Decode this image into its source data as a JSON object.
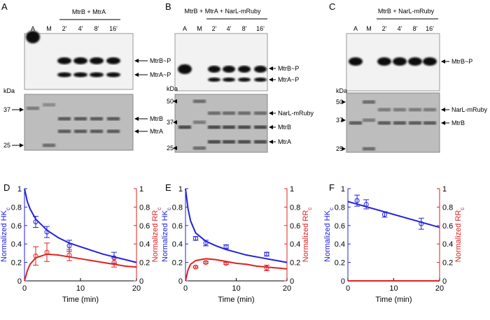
{
  "gels": [
    {
      "letter": "A",
      "condition": "MtrB + MtrA",
      "lanes": [
        "A",
        "M",
        "2'",
        "4'",
        "8'",
        "16'"
      ],
      "top_labels": [
        "MtrB~P",
        "MtrA~P"
      ],
      "bottom_labels": [
        "MtrB",
        "MtrA"
      ],
      "kda": "kDa",
      "markers": [
        "37",
        "25"
      ]
    },
    {
      "letter": "B",
      "condition": "MtrB + MtrA + NarL-mRuby",
      "lanes": [
        "A",
        "M",
        "2'",
        "4'",
        "8'",
        "16'"
      ],
      "top_labels": [
        "MtrB~P",
        "MtrA~P"
      ],
      "bottom_labels": [
        "NarL-mRuby",
        "MtrB",
        "MtrA"
      ],
      "kda": "kDa",
      "markers": [
        "50",
        "37",
        "25"
      ]
    },
    {
      "letter": "C",
      "condition": "MtrB + NarL-mRuby",
      "lanes": [
        "A",
        "M",
        "2'",
        "4'",
        "8'",
        "16'"
      ],
      "top_labels": [
        "MtrB~P"
      ],
      "bottom_labels": [
        "NarL-mRuby",
        "MtrB"
      ],
      "kda": "kDa",
      "markers": [
        "50",
        "37",
        "25"
      ]
    }
  ],
  "chart_data": [
    {
      "panel": "D",
      "type": "line",
      "xlabel": "Time (min)",
      "ylabel": {
        "text": "Normalized HK",
        "sub": "c"
      },
      "y2label": {
        "text": "Normalized RR",
        "sub": "c"
      },
      "xlim": [
        0,
        20
      ],
      "xticks": [
        0,
        10,
        20
      ],
      "ylim": [
        0,
        1
      ],
      "yticks": [
        0,
        0.2,
        0.4,
        0.6,
        0.8,
        1
      ],
      "y2lim": [
        0,
        1
      ],
      "y2ticks": [
        0,
        0.2,
        0.4,
        0.6,
        0.8,
        1
      ],
      "ycolor": "#2222dd",
      "y2color": "#e02020",
      "series": [
        {
          "color": "#2222dd",
          "x": [
            2,
            4,
            8,
            16
          ],
          "values": [
            0.64,
            0.53,
            0.38,
            0.25
          ],
          "errors": [
            0.06,
            0.06,
            0.06,
            0.06
          ]
        },
        {
          "color": "#e02020",
          "axis": "y2",
          "x": [
            2,
            4,
            8,
            16
          ],
          "values": [
            0.27,
            0.31,
            0.28,
            0.2
          ],
          "errors": [
            0.1,
            0.1,
            0.06,
            0.05
          ]
        },
        {
          "color": "#2222dd",
          "x": [
            0,
            0.5,
            1,
            2,
            4,
            6,
            8,
            10,
            12,
            14,
            16,
            18,
            20
          ],
          "values": [
            1.0,
            0.86,
            0.78,
            0.67,
            0.55,
            0.47,
            0.41,
            0.37,
            0.33,
            0.29,
            0.26,
            0.23,
            0.2
          ]
        },
        {
          "color": "#e02020",
          "axis": "y2",
          "x": [
            0,
            0.5,
            1,
            2,
            4,
            6,
            8,
            10,
            12,
            14,
            16,
            18,
            20
          ],
          "values": [
            0,
            0.11,
            0.18,
            0.25,
            0.29,
            0.28,
            0.26,
            0.24,
            0.22,
            0.2,
            0.18,
            0.16,
            0.15
          ]
        }
      ]
    },
    {
      "panel": "E",
      "type": "line",
      "xlabel": "Time (min)",
      "ylabel": {
        "text": "Normalized HK",
        "sub": "c"
      },
      "y2label": {
        "text": "Normalized RR",
        "sub": "c"
      },
      "xlim": [
        0,
        20
      ],
      "xticks": [
        0,
        10,
        20
      ],
      "ylim": [
        0,
        1
      ],
      "yticks": [
        0,
        0.2,
        0.4,
        0.6,
        0.8,
        1
      ],
      "y2lim": [
        0,
        1
      ],
      "y2ticks": [
        0,
        0.2,
        0.4,
        0.6,
        0.8,
        1
      ],
      "ycolor": "#2222dd",
      "y2color": "#e02020",
      "series": [
        {
          "color": "#2222dd",
          "x": [
            2,
            4,
            8,
            16
          ],
          "values": [
            0.46,
            0.41,
            0.37,
            0.29
          ],
          "errors": [
            0.02,
            0.03,
            0.02,
            0.02
          ]
        },
        {
          "color": "#e02020",
          "axis": "y2",
          "x": [
            2,
            4,
            8,
            16
          ],
          "values": [
            0.15,
            0.2,
            0.19,
            0.14
          ],
          "errors": [
            0.01,
            0.01,
            0.01,
            0.03
          ]
        },
        {
          "color": "#2222dd",
          "x": [
            0,
            0.5,
            1,
            2,
            4,
            6,
            8,
            10,
            12,
            14,
            16,
            18,
            20
          ],
          "values": [
            1.0,
            0.78,
            0.65,
            0.52,
            0.43,
            0.38,
            0.34,
            0.31,
            0.28,
            0.26,
            0.24,
            0.22,
            0.2
          ]
        },
        {
          "color": "#e02020",
          "axis": "y2",
          "x": [
            0,
            0.5,
            1,
            2,
            4,
            6,
            8,
            10,
            12,
            14,
            16,
            18,
            20
          ],
          "values": [
            0,
            0.12,
            0.18,
            0.22,
            0.24,
            0.23,
            0.21,
            0.19,
            0.18,
            0.16,
            0.15,
            0.14,
            0.13
          ]
        }
      ]
    },
    {
      "panel": "F",
      "type": "line",
      "xlabel": "Time (min)",
      "ylabel": {
        "text": "Normalized HK",
        "sub": "c"
      },
      "y2label": {
        "text": "Normalized RR",
        "sub": "c"
      },
      "xlim": [
        0,
        20
      ],
      "xticks": [
        0,
        10,
        20
      ],
      "ylim": [
        0,
        1
      ],
      "yticks": [
        0,
        0.2,
        0.4,
        0.6,
        0.8,
        1
      ],
      "y2lim": [
        0,
        1
      ],
      "y2ticks": [
        0,
        0.2,
        0.4,
        0.6,
        0.8,
        1
      ],
      "ycolor": "#2222dd",
      "y2color": "#e02020",
      "series": [
        {
          "color": "#2222dd",
          "x": [
            2,
            4,
            8,
            16
          ],
          "values": [
            0.87,
            0.83,
            0.72,
            0.62
          ],
          "errors": [
            0.06,
            0.05,
            0.03,
            0.06
          ]
        },
        {
          "color": "#2222dd",
          "x": [
            0,
            20
          ],
          "values": [
            0.86,
            0.58
          ]
        },
        {
          "color": "#e02020",
          "axis": "y2",
          "x": [
            0,
            20
          ],
          "values": [
            0,
            0
          ]
        }
      ]
    }
  ]
}
